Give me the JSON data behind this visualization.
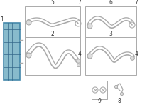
{
  "bg_color": "#ffffff",
  "line_color": "#999999",
  "cooler_color": "#4488aa",
  "cooler_fill": "#88bbcc",
  "cooler_line": "#336688",
  "label_color": "#333333",
  "box_fill": "#ffffff",
  "box_edge": "#aaaaaa",
  "hose_color": "#aaaaaa",
  "hose_lw": 1.2,
  "label_fs": 5.5
}
